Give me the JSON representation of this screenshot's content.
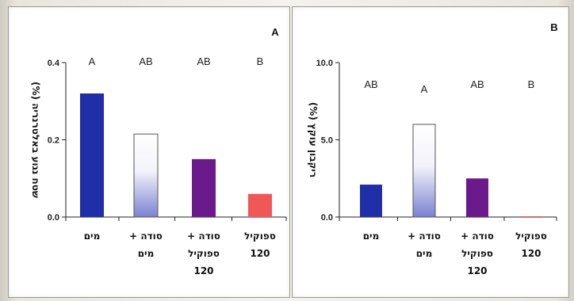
{
  "chart_data": [
    {
      "type": "bar",
      "panel_label": "A",
      "ylabel": "שטח נגוע באלטרנריה (%)",
      "ylim": [
        0,
        0.4
      ],
      "yticks": [
        "0.0",
        "0.2",
        "0.4"
      ],
      "categories": [
        [
          "מים"
        ],
        [
          "סודה +",
          "מים"
        ],
        [
          "סודה +",
          "ספוקיל",
          "120"
        ],
        [
          "ספוקיל",
          "120"
        ]
      ],
      "values": [
        0.32,
        0.215,
        0.15,
        0.06
      ],
      "significance": [
        "A",
        "AB",
        "AB",
        "B"
      ],
      "colors": [
        "#1f2fa8",
        "#ffffff",
        "#6b1a8c",
        "#f05858"
      ],
      "grid": false
    },
    {
      "type": "bar",
      "panel_label": "B",
      "ylabel": "ריקבון עוקץ (%)",
      "ylim": [
        0,
        10
      ],
      "yticks": [
        "0.0",
        "5.0",
        "10.0"
      ],
      "categories": [
        [
          "מים"
        ],
        [
          "סודה +",
          "מים"
        ],
        [
          "סודה +",
          "ספוקיל",
          "120"
        ],
        [
          "ספוקיל",
          "120"
        ]
      ],
      "values": [
        2.1,
        6.0,
        2.5,
        0.05
      ],
      "significance": [
        "AB",
        "A",
        "AB",
        "B"
      ],
      "colors": [
        "#1f2fa8",
        "#ffffff",
        "#6b1a8c",
        "#f05858"
      ],
      "grid": false
    }
  ]
}
